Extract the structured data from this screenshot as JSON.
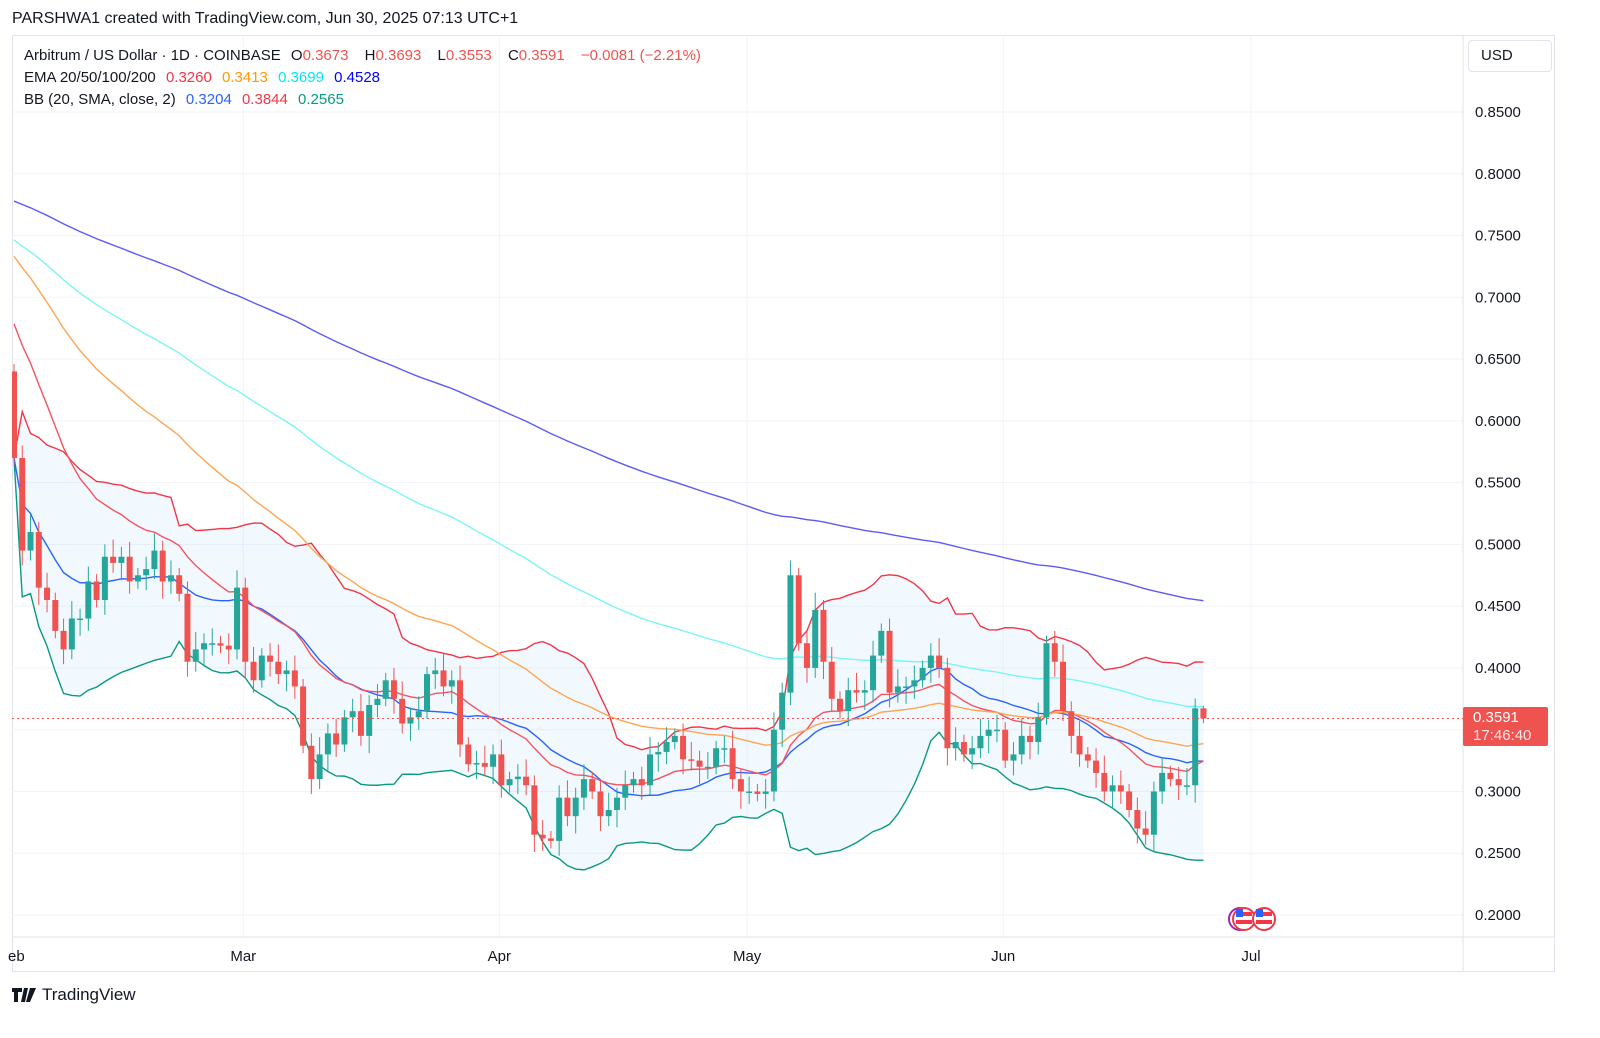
{
  "caption": "PARSHWA1 created with TradingView.com, Jun 30, 2025 07:13 UTC+1",
  "legend": {
    "symbol": "Arbitrum / US Dollar · 1D · COINBASE",
    "o_label": "O",
    "o": "0.3673",
    "h_label": "H",
    "h": "0.3693",
    "l_label": "L",
    "l": "0.3553",
    "c_label": "C",
    "c": "0.3591",
    "change": "−0.0081 (−2.21%)",
    "ema_label": "EMA 20/50/100/200",
    "ema": [
      "0.3260",
      "0.3413",
      "0.3699",
      "0.4528"
    ],
    "bb_label": "BB (20, SMA, close, 2)",
    "bb": [
      "0.3204",
      "0.3844",
      "0.2565"
    ]
  },
  "currency": "USD",
  "last_price": "0.3591",
  "countdown": "17:46:40",
  "brand": "TradingView",
  "colors": {
    "up": "#26a69a",
    "down": "#ef5350",
    "ema20": "#f7525f",
    "ema50": "#ffa552",
    "ema100": "#7af5f5",
    "ema200": "#5b5bf5",
    "bb_basis": "#2962ff",
    "bb_upper": "#f23645",
    "bb_lower": "#089981"
  },
  "chart_data": {
    "type": "candlestick",
    "title": "Arbitrum / US Dollar · 1D · COINBASE",
    "start_date": "2025-02-01",
    "ylim": [
      0.18,
      0.88
    ],
    "yticks": [
      "0.2000",
      "0.2500",
      "0.3000",
      "0.3500",
      "0.4000",
      "0.4500",
      "0.5000",
      "0.5500",
      "0.6000",
      "0.6500",
      "0.7000",
      "0.7500",
      "0.8000",
      "0.8500"
    ],
    "xticks": [
      {
        "label": "eb",
        "day": 0
      },
      {
        "label": "Mar",
        "day": 28
      },
      {
        "label": "Apr",
        "day": 59
      },
      {
        "label": "May",
        "day": 89
      },
      {
        "label": "Jun",
        "day": 120
      },
      {
        "label": "Jul",
        "day": 150
      }
    ],
    "first_open": 0.64,
    "closes": [
      0.57,
      0.495,
      0.51,
      0.465,
      0.455,
      0.43,
      0.415,
      0.44,
      0.44,
      0.47,
      0.455,
      0.49,
      0.485,
      0.49,
      0.47,
      0.475,
      0.48,
      0.495,
      0.47,
      0.475,
      0.46,
      0.405,
      0.415,
      0.42,
      0.42,
      0.418,
      0.415,
      0.465,
      0.405,
      0.39,
      0.41,
      0.405,
      0.395,
      0.398,
      0.385,
      0.337,
      0.31,
      0.33,
      0.347,
      0.338,
      0.36,
      0.365,
      0.345,
      0.37,
      0.375,
      0.39,
      0.375,
      0.355,
      0.36,
      0.365,
      0.395,
      0.398,
      0.385,
      0.39,
      0.338,
      0.322,
      0.323,
      0.32,
      0.33,
      0.305,
      0.31,
      0.312,
      0.305,
      0.265,
      0.262,
      0.26,
      0.295,
      0.28,
      0.295,
      0.31,
      0.3,
      0.28,
      0.285,
      0.295,
      0.305,
      0.31,
      0.305,
      0.33,
      0.332,
      0.34,
      0.345,
      0.326,
      0.325,
      0.32,
      0.32,
      0.335,
      0.335,
      0.31,
      0.3,
      0.3,
      0.298,
      0.3,
      0.35,
      0.38,
      0.475,
      0.42,
      0.4,
      0.447,
      0.405,
      0.375,
      0.365,
      0.382,
      0.38,
      0.382,
      0.41,
      0.43,
      0.38,
      0.385,
      0.385,
      0.39,
      0.4,
      0.41,
      0.4,
      0.335,
      0.34,
      0.33,
      0.335,
      0.345,
      0.35,
      0.35,
      0.325,
      0.33,
      0.345,
      0.34,
      0.36,
      0.42,
      0.405,
      0.365,
      0.345,
      0.33,
      0.325,
      0.315,
      0.3,
      0.305,
      0.3,
      0.285,
      0.27,
      0.265,
      0.3,
      0.315,
      0.31,
      0.305,
      0.305,
      0.3673,
      0.3591
    ],
    "last_candle": {
      "open": 0.3673,
      "high": 0.3693,
      "low": 0.3553,
      "close": 0.3591
    },
    "indicators": {
      "ema_periods": [
        20,
        50,
        100,
        200
      ],
      "ema_start": [
        0.69,
        0.74,
        0.75,
        0.78
      ],
      "bb": {
        "period": 20,
        "mult": 2
      }
    },
    "last_price": 0.3591
  }
}
